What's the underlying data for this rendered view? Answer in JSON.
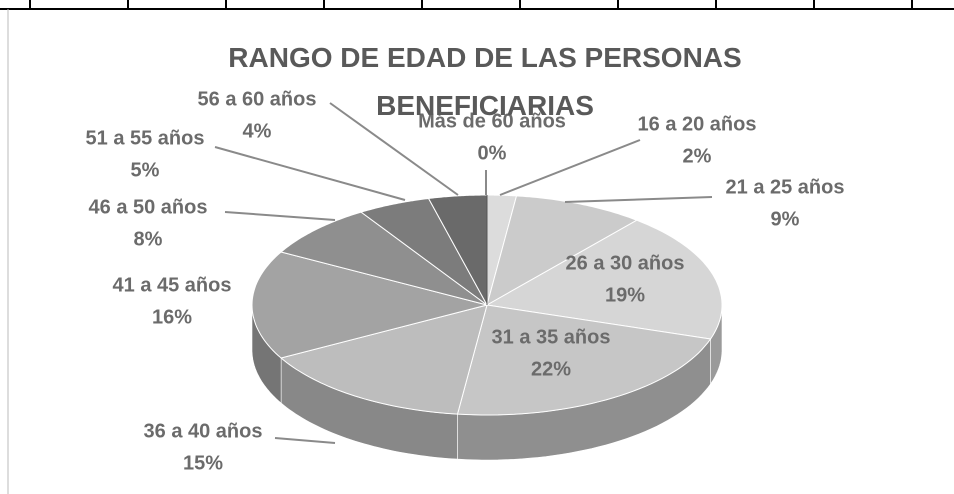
{
  "chart_data": {
    "type": "pie",
    "title": "RANGO DE EDAD DE LAS PERSONAS BENEFICIARIAS",
    "categories": [
      "16 a 20 años",
      "21 a 25 años",
      "26 a 30 años",
      "31 a 35 años",
      "36 a 40 años",
      "41 a 45 años",
      "46 a 50 años",
      "51 a 55 años",
      "56 a 60 años",
      "Más de 60 años"
    ],
    "values": [
      2,
      9,
      19,
      22,
      15,
      16,
      8,
      5,
      4,
      0
    ],
    "value_labels": [
      "2%",
      "9%",
      "19%",
      "22%",
      "15%",
      "16%",
      "8%",
      "5%",
      "4%",
      "0%"
    ],
    "colors": [
      "#dcdcdc",
      "#cbcbcb",
      "#d6d6d6",
      "#c6c6c6",
      "#bdbdbd",
      "#a3a3a3",
      "#8f8f8f",
      "#7c7c7c",
      "#6a6a6a",
      "#575757"
    ]
  }
}
